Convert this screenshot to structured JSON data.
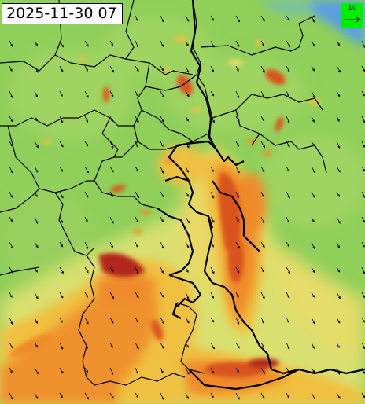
{
  "map": {
    "timestamp": "2025-11-30 07",
    "legend_value": "10",
    "colors": {
      "calm": "#8fcf5a",
      "light": "#a8d867",
      "moderate": "#d9e070",
      "strong": "#f0c040",
      "very_strong": "#ef8a2a",
      "severe": "#d9531e",
      "extreme": "#b3261e",
      "sea": "#5aa0e0",
      "border": "#000000",
      "legend_bg": "#00ee00"
    },
    "icons": {
      "wind_arrow": "wind-arrow-icon"
    }
  }
}
